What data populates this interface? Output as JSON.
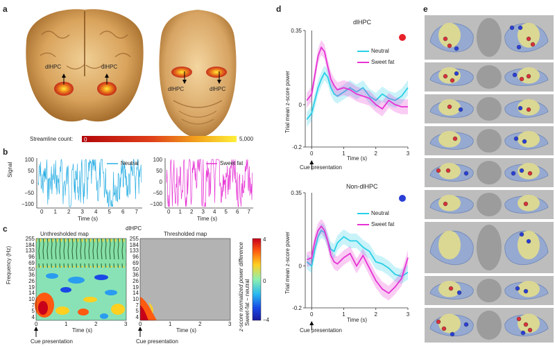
{
  "panel_a": {
    "label": "a",
    "left_roi_label": "dlHPC",
    "right_roi_label": "dlHPC",
    "axial_left_label": "dlHPC",
    "axial_right_label": "dlHPC",
    "colorbar_title": "Streamline count:",
    "colorbar_min": "0",
    "colorbar_max": "5,000"
  },
  "panel_b": {
    "label": "b",
    "ylabel": "Signal",
    "xlabel": "Time (s)",
    "left_legend": "Neutral",
    "right_legend": "Sweet fat",
    "yticks": [
      "100",
      "50",
      "0",
      "−50",
      "−100"
    ],
    "xticks": [
      "0",
      "1",
      "2",
      "3",
      "4",
      "5",
      "6",
      "7"
    ],
    "neutral_color": "#29aee3",
    "sweet_color": "#e632d4"
  },
  "panel_c": {
    "label": "c",
    "left_title": "Unthresholded map",
    "mid_title": "dlHPC",
    "right_title": "Thresholded map",
    "ylabel": "Frequency (Hz)",
    "xlabel": "Time (s)",
    "freq_ticks": [
      "255",
      "184",
      "133",
      "96",
      "69",
      "50",
      "36",
      "26",
      "19",
      "14",
      "10",
      "7",
      "5",
      "4"
    ],
    "xticks": [
      "0",
      "1",
      "2",
      "3"
    ],
    "cue_label": "Cue presentation",
    "colorbar_label_1": "Sweet-fat − neutral",
    "colorbar_label_2": "z-score normalized power difference",
    "colorbar_ticks": [
      "4",
      "0",
      "−4"
    ]
  },
  "panel_d": {
    "label": "d",
    "top_title": "dlHPC",
    "bottom_title": "Non-dlHPC",
    "ylabel": "Trial mean z-score power",
    "xlabel": "Time (s)",
    "cue_label": "Cue presentation",
    "legend_neutral": "Neutral",
    "legend_sweet": "Sweet fat",
    "top_dot_color": "#e8202a",
    "bottom_dot_color": "#2a3fd6"
  },
  "panel_e": {
    "label": "e"
  },
  "chart_data": [
    {
      "type": "line",
      "title": "dlHPC",
      "xlabel": "Time (s)",
      "ylabel": "Trial mean z-score power",
      "xlim": [
        -0.2,
        3
      ],
      "ylim": [
        -0.2,
        0.35
      ],
      "yticks": [
        "0.35",
        "0",
        "-0.2"
      ],
      "xticks": [
        "0",
        "1",
        "2",
        "3"
      ],
      "x": [
        -0.15,
        0,
        0.1,
        0.2,
        0.3,
        0.4,
        0.5,
        0.6,
        0.7,
        0.8,
        1.0,
        1.2,
        1.4,
        1.6,
        1.8,
        2.0,
        2.2,
        2.4,
        2.6,
        2.8,
        3.0
      ],
      "series": [
        {
          "name": "Neutral",
          "color": "#29cfe8",
          "values": [
            -0.07,
            -0.04,
            0.02,
            0.08,
            0.12,
            0.15,
            0.13,
            0.08,
            0.05,
            0.04,
            0.06,
            0.08,
            0.06,
            0.08,
            0.04,
            0.02,
            0.05,
            0.03,
            0.02,
            0.04,
            0.08
          ]
        },
        {
          "name": "Sweet fat",
          "color": "#e632d4",
          "values": [
            0.02,
            0.05,
            0.14,
            0.23,
            0.27,
            0.25,
            0.18,
            0.12,
            0.09,
            0.07,
            0.08,
            0.07,
            0.05,
            0.04,
            0.03,
            0.0,
            -0.02,
            0.02,
            0.0,
            -0.01,
            -0.01
          ]
        }
      ]
    },
    {
      "type": "line",
      "title": "Non-dlHPC",
      "xlabel": "Time (s)",
      "ylabel": "Trial mean z-score power",
      "xlim": [
        -0.2,
        3
      ],
      "ylim": [
        -0.2,
        0.35
      ],
      "yticks": [
        "0.35",
        "0",
        "-0.2"
      ],
      "xticks": [
        "0",
        "1",
        "2",
        "3"
      ],
      "x": [
        -0.15,
        0,
        0.1,
        0.2,
        0.3,
        0.4,
        0.5,
        0.6,
        0.7,
        0.8,
        1.0,
        1.2,
        1.4,
        1.6,
        1.8,
        2.0,
        2.2,
        2.4,
        2.6,
        2.8,
        3.0
      ],
      "series": [
        {
          "name": "Neutral",
          "color": "#29cfe8",
          "values": [
            0.02,
            0.0,
            0.08,
            0.14,
            0.17,
            0.16,
            0.12,
            0.08,
            0.07,
            0.11,
            0.14,
            0.12,
            0.12,
            0.09,
            0.07,
            0.02,
            0.01,
            -0.01,
            -0.04,
            -0.05,
            -0.03
          ]
        },
        {
          "name": "Sweet fat",
          "color": "#e632d4",
          "values": [
            0.03,
            0.04,
            0.12,
            0.17,
            0.19,
            0.17,
            0.12,
            0.05,
            0.02,
            0.01,
            0.04,
            0.06,
            0.0,
            0.05,
            -0.01,
            -0.07,
            -0.11,
            -0.13,
            -0.1,
            -0.06,
            0.04
          ]
        }
      ]
    }
  ]
}
